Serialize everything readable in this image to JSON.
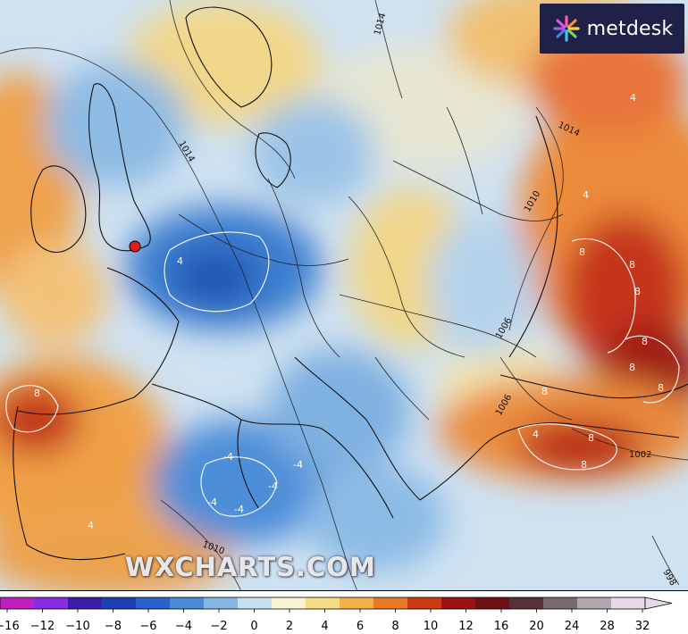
{
  "brand": {
    "name": "metdesk",
    "icon": "metdesk-starburst-icon"
  },
  "watermark": {
    "text": "WXCHARTS.COM"
  },
  "isobars": [
    "1014",
    "1014",
    "1014",
    "1010",
    "1006",
    "1006",
    "1002",
    "1010",
    "998"
  ],
  "anomaly_labels": [
    "4",
    "4",
    "4",
    "8",
    "8",
    "8",
    "8",
    "8",
    "8",
    "8",
    "8",
    "8",
    "4",
    "8",
    "-4",
    "-4",
    "-4",
    "-4",
    "-4",
    "4"
  ],
  "marker": {
    "color": "#e11a1a"
  },
  "colorbar": {
    "tick_labels": [
      "−16",
      "−12",
      "−10",
      "−8",
      "−6",
      "−4",
      "−2",
      "0",
      "2",
      "4",
      "6",
      "8",
      "10",
      "12",
      "16",
      "20",
      "24",
      "28",
      "32"
    ],
    "colors": [
      "#c020c0",
      "#8a2be2",
      "#3a1ea8",
      "#1e3fb0",
      "#2a62cc",
      "#4a8ad6",
      "#86b7e3",
      "#c6dff0",
      "#f7f3d4",
      "#f6dc86",
      "#f2b04a",
      "#e87a26",
      "#cc3a12",
      "#9a1414",
      "#6e1014",
      "#5a3038",
      "#7a6a70",
      "#b0a8ac",
      "#e8d8e8"
    ]
  }
}
